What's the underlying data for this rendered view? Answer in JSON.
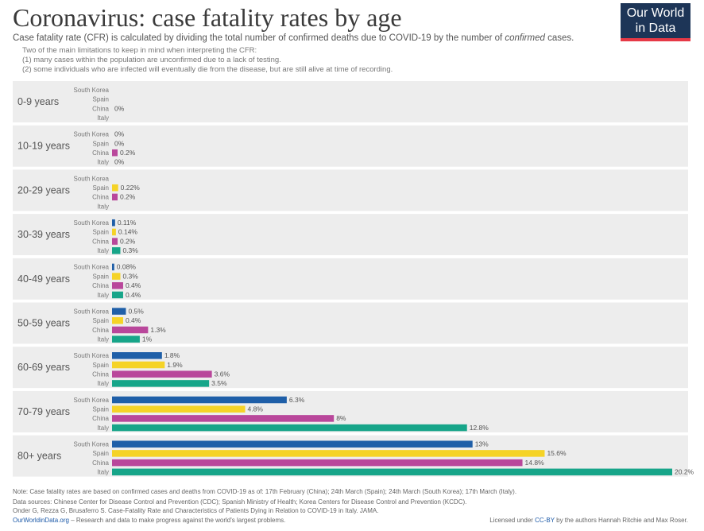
{
  "header": {
    "title": "Coronavirus: case fatality rates by age",
    "subtitle_pre": "Case fatality rate (CFR) is calculated by dividing the total number of confirmed deaths due to COVID-19 by the number of ",
    "subtitle_em": "confirmed",
    "subtitle_post": " cases.",
    "note_lines": [
      "Two of the main limitations to keep in mind when interpreting the CFR:",
      "(1) many cases within the population are unconfirmed due to a lack of testing.",
      "(2) some individuals who are infected will eventually die from the disease, but are still alive at time of recording."
    ],
    "logo_line1": "Our World",
    "logo_line2": "in Data"
  },
  "colors": {
    "South Korea": "#1f5fa8",
    "Spain": "#f5d327",
    "China": "#b9479b",
    "Italy": "#17a589",
    "panel": "#ededed"
  },
  "chart_data": {
    "type": "bar",
    "orientation": "horizontal",
    "categories": [
      "0-9 years",
      "10-19 years",
      "20-29 years",
      "30-39 years",
      "40-49 years",
      "50-59 years",
      "60-69 years",
      "70-79 years",
      "80+ years"
    ],
    "series": [
      {
        "name": "South Korea",
        "values": [
          null,
          0,
          null,
          0.11,
          0.08,
          0.5,
          1.8,
          6.3,
          13
        ]
      },
      {
        "name": "Spain",
        "values": [
          null,
          0,
          0.22,
          0.14,
          0.3,
          0.4,
          1.9,
          4.8,
          15.6
        ]
      },
      {
        "name": "China",
        "values": [
          0,
          0.2,
          0.2,
          0.2,
          0.4,
          1.3,
          3.6,
          8,
          14.8
        ]
      },
      {
        "name": "Italy",
        "values": [
          null,
          0,
          null,
          0.3,
          0.4,
          1,
          3.5,
          12.8,
          20.2
        ]
      }
    ],
    "value_labels": [
      [
        null,
        null,
        "0%",
        null
      ],
      [
        "0%",
        "0%",
        "0.2%",
        "0%"
      ],
      [
        null,
        "0.22%",
        "0.2%",
        null
      ],
      [
        "0.11%",
        "0.14%",
        "0.2%",
        "0.3%"
      ],
      [
        "0.08%",
        "0.3%",
        "0.4%",
        "0.4%"
      ],
      [
        "0.5%",
        "0.4%",
        "1.3%",
        "1%"
      ],
      [
        "1.8%",
        "1.9%",
        "3.6%",
        "3.5%"
      ],
      [
        "6.3%",
        "4.8%",
        "8%",
        "12.8%"
      ],
      [
        "13%",
        "15.6%",
        "14.8%",
        "20.2%"
      ]
    ],
    "xlim": [
      0,
      20.2
    ],
    "unit": "%"
  },
  "footer": {
    "note": "Note: Case fatality rates are based on confirmed cases and deaths from COVID-19 as of: 17th February (China); 24th March (Spain); 24th March (South Korea); 17th March (Italy).",
    "sources1": "Data sources: Chinese Center for Disease Control and Prevention (CDC); Spanish Ministry of Health; Korea Centers for Disease Control and Prevention (KCDC).",
    "sources2": "Onder G, Rezza G, Brusaferro S. Case-Fatality Rate and Characteristics of Patients Dying in Relation to COVID-19 in Italy. JAMA.",
    "link": "OurWorldinData.org",
    "tagline": " – Research and data to make progress against the world's largest problems.",
    "license_pre": "Licensed under ",
    "license_link": "CC-BY",
    "license_post": " by the authors Hannah Ritchie and Max Roser."
  }
}
